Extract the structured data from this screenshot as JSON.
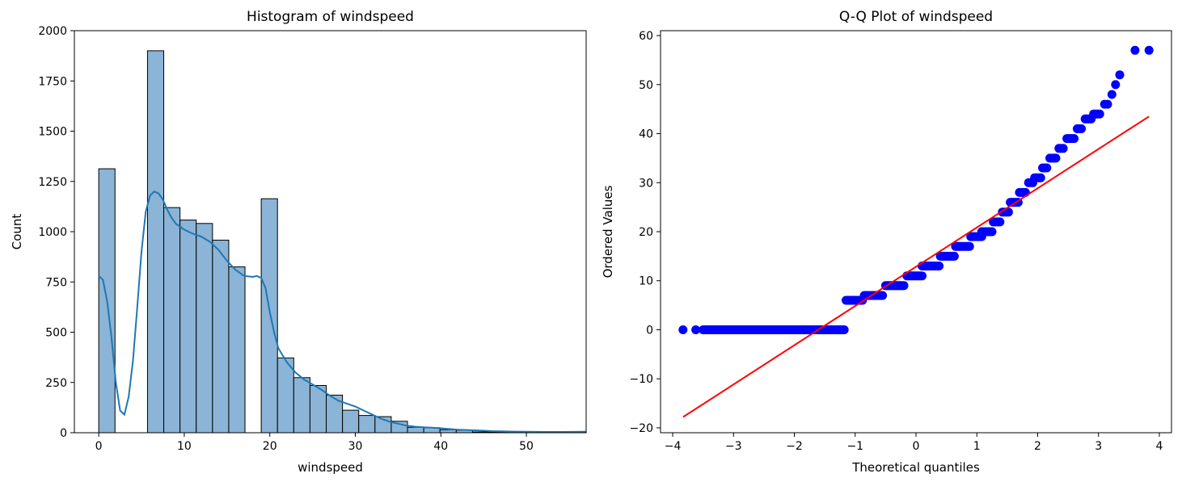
{
  "chart_data": [
    {
      "type": "bar",
      "title": "Histogram of windspeed",
      "xlabel": "windspeed",
      "ylabel": "Count",
      "xlim": [
        -2.85,
        56.99
      ],
      "ylim": [
        0,
        2000
      ],
      "xticks": [
        0,
        10,
        20,
        30,
        40,
        50
      ],
      "yticks": [
        0,
        250,
        500,
        750,
        1000,
        1250,
        1500,
        1750,
        2000
      ],
      "bin_width": 1.9,
      "bins": [
        {
          "x0": 0.0,
          "count": 1313
        },
        {
          "x0": 5.7,
          "count": 1900
        },
        {
          "x0": 7.6,
          "count": 1120
        },
        {
          "x0": 9.5,
          "count": 1058
        },
        {
          "x0": 11.4,
          "count": 1041
        },
        {
          "x0": 13.3,
          "count": 958
        },
        {
          "x0": 15.2,
          "count": 825
        },
        {
          "x0": 19.0,
          "count": 1164
        },
        {
          "x0": 20.9,
          "count": 372
        },
        {
          "x0": 22.8,
          "count": 274
        },
        {
          "x0": 24.7,
          "count": 235
        },
        {
          "x0": 26.6,
          "count": 187
        },
        {
          "x0": 28.5,
          "count": 112
        },
        {
          "x0": 30.4,
          "count": 86
        },
        {
          "x0": 32.3,
          "count": 80
        },
        {
          "x0": 34.2,
          "count": 57
        },
        {
          "x0": 36.1,
          "count": 27
        },
        {
          "x0": 38.0,
          "count": 25
        },
        {
          "x0": 39.9,
          "count": 15
        },
        {
          "x0": 41.8,
          "count": 12
        },
        {
          "x0": 43.7,
          "count": 4
        },
        {
          "x0": 45.6,
          "count": 3
        },
        {
          "x0": 47.5,
          "count": 2
        },
        {
          "x0": 49.4,
          "count": 1
        },
        {
          "x0": 51.3,
          "count": 1
        },
        {
          "x0": 53.2,
          "count": 1
        },
        {
          "x0": 55.1,
          "count": 2
        }
      ],
      "kde": {
        "x": [
          0,
          0.5,
          1,
          1.5,
          2,
          2.5,
          3,
          3.5,
          4,
          4.5,
          5,
          5.5,
          6,
          6.5,
          7,
          7.5,
          8,
          8.5,
          9,
          10,
          11,
          12,
          13,
          14,
          15,
          16,
          17,
          18,
          18.5,
          19,
          19.5,
          20,
          20.5,
          21,
          22,
          23,
          24,
          25,
          26,
          27,
          28,
          29,
          30,
          31,
          32,
          33,
          34,
          35,
          36,
          37,
          38,
          39,
          40,
          42,
          44,
          46,
          48,
          50,
          52,
          54,
          57
        ],
        "y": [
          780,
          760,
          650,
          470,
          250,
          110,
          90,
          180,
          360,
          620,
          900,
          1100,
          1180,
          1200,
          1190,
          1160,
          1110,
          1070,
          1040,
          1010,
          990,
          975,
          950,
          910,
          855,
          810,
          780,
          775,
          780,
          770,
          720,
          600,
          500,
          420,
          350,
          300,
          265,
          240,
          215,
          185,
          160,
          145,
          130,
          110,
          90,
          70,
          55,
          45,
          35,
          30,
          27,
          25,
          22,
          15,
          12,
          8,
          6,
          5,
          4,
          4,
          5
        ]
      },
      "colors": {
        "bar_fill": "#8bb4d6",
        "bar_edge": "#000000",
        "kde": "#1f77b4"
      }
    },
    {
      "type": "scatter",
      "title": "Q-Q Plot of windspeed",
      "xlabel": "Theoretical quantiles",
      "ylabel": "Ordered Values",
      "xlim": [
        -4.2,
        4.2
      ],
      "ylim": [
        -21,
        61
      ],
      "xticks": [
        -4,
        -3,
        -2,
        -1,
        0,
        1,
        2,
        3,
        4
      ],
      "yticks": [
        -20,
        -10,
        0,
        10,
        20,
        30,
        40,
        50,
        60
      ],
      "fit_line": {
        "x": [
          -3.83,
          3.83
        ],
        "y": [
          -17.8,
          43.5
        ]
      },
      "steps": [
        {
          "from": -3.83,
          "to": -3.83,
          "value": 0
        },
        {
          "from": -3.62,
          "to": -3.62,
          "value": 0
        },
        {
          "from": -3.5,
          "to": -1.18,
          "value": 0
        },
        {
          "from": -1.15,
          "to": -0.88,
          "value": 6
        },
        {
          "from": -0.85,
          "to": -0.55,
          "value": 7
        },
        {
          "from": -0.5,
          "to": -0.2,
          "value": 9
        },
        {
          "from": -0.15,
          "to": 0.1,
          "value": 11
        },
        {
          "from": 0.1,
          "to": 0.38,
          "value": 13
        },
        {
          "from": 0.4,
          "to": 0.63,
          "value": 15
        },
        {
          "from": 0.65,
          "to": 0.88,
          "value": 17
        },
        {
          "from": 0.9,
          "to": 1.08,
          "value": 19
        },
        {
          "from": 1.08,
          "to": 1.25,
          "value": 20
        },
        {
          "from": 1.27,
          "to": 1.38,
          "value": 22
        },
        {
          "from": 1.42,
          "to": 1.52,
          "value": 24
        },
        {
          "from": 1.55,
          "to": 1.68,
          "value": 26
        },
        {
          "from": 1.7,
          "to": 1.8,
          "value": 28
        },
        {
          "from": 1.85,
          "to": 1.92,
          "value": 30
        },
        {
          "from": 1.95,
          "to": 2.05,
          "value": 31
        },
        {
          "from": 2.08,
          "to": 2.15,
          "value": 33
        },
        {
          "from": 2.2,
          "to": 2.3,
          "value": 35
        },
        {
          "from": 2.35,
          "to": 2.42,
          "value": 37
        },
        {
          "from": 2.48,
          "to": 2.6,
          "value": 39
        },
        {
          "from": 2.65,
          "to": 2.72,
          "value": 41
        },
        {
          "from": 2.78,
          "to": 2.88,
          "value": 43
        },
        {
          "from": 2.92,
          "to": 3.02,
          "value": 44
        },
        {
          "from": 3.1,
          "to": 3.15,
          "value": 46
        },
        {
          "from": 3.22,
          "to": 3.22,
          "value": 48
        },
        {
          "from": 3.28,
          "to": 3.28,
          "value": 50
        },
        {
          "from": 3.35,
          "to": 3.35,
          "value": 52
        },
        {
          "from": 3.6,
          "to": 3.6,
          "value": 57
        },
        {
          "from": 3.83,
          "to": 3.83,
          "value": 57
        }
      ],
      "colors": {
        "points": "#0000ff",
        "fit_line": "#ff0000"
      }
    }
  ]
}
